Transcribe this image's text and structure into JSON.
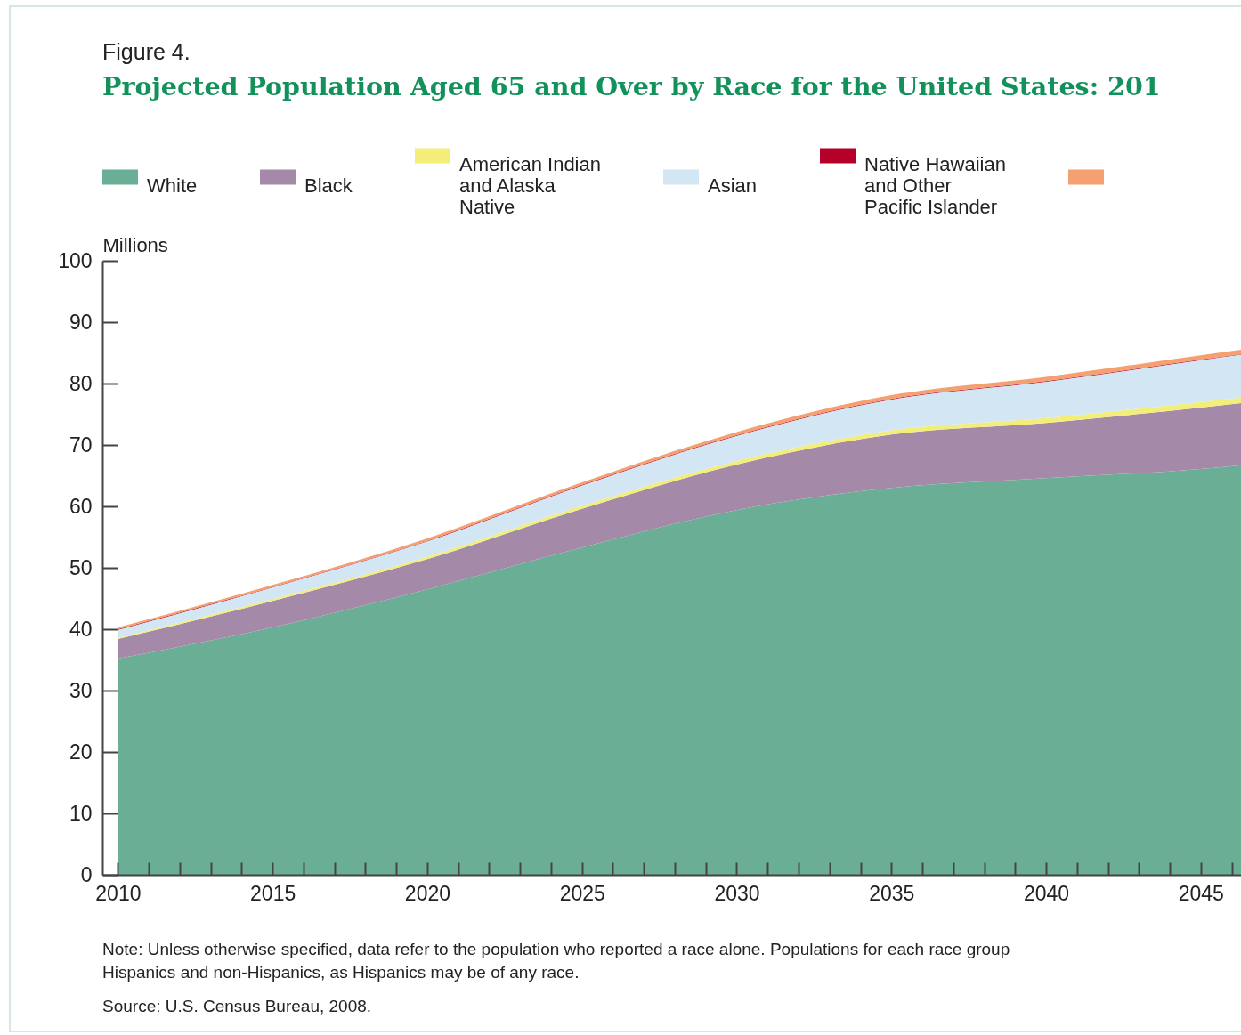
{
  "chart_data": {
    "type": "area",
    "stacked": true,
    "subtitle": "Figure 4.",
    "title": "Projected Population Aged 65 and Over by Race for the United States: 201",
    "ylabel": "Millions",
    "x": [
      2010,
      2015,
      2020,
      2025,
      2030,
      2035,
      2040,
      2045,
      2046.3
    ],
    "series": [
      {
        "name": "White",
        "color": "#6aaf95",
        "values": [
          35.2,
          40.3,
          46.5,
          53.3,
          59.4,
          63.0,
          64.6,
          66.1,
          66.7
        ]
      },
      {
        "name": "Black",
        "color": "#a48aa8",
        "values": [
          3.2,
          4.3,
          4.9,
          6.3,
          7.4,
          8.7,
          9.0,
          10.0,
          10.1
        ]
      },
      {
        "name": "American Indian and Alaska Native",
        "color": "#f3ee7a",
        "values": [
          0.2,
          0.3,
          0.4,
          0.5,
          0.6,
          0.7,
          0.8,
          0.9,
          0.9
        ]
      },
      {
        "name": "Asian",
        "color": "#d3e6f4",
        "values": [
          1.3,
          1.9,
          2.5,
          3.3,
          4.1,
          5.0,
          5.9,
          6.8,
          7.0
        ]
      },
      {
        "name": "Native Hawaiian and Other Pacific Islander",
        "color": "#b5002a",
        "values": [
          0.1,
          0.1,
          0.1,
          0.1,
          0.1,
          0.1,
          0.1,
          0.1,
          0.1
        ]
      },
      {
        "color": "#f5a070",
        "values": [
          0.3,
          0.3,
          0.4,
          0.4,
          0.5,
          0.6,
          0.7,
          0.7,
          0.7
        ]
      }
    ],
    "xlim": [
      2009.5,
      2046.3
    ],
    "xticks": [
      2010,
      {
        "value": 2011,
        "label": null
      },
      {
        "value": 2012,
        "label": null
      },
      {
        "value": 2013,
        "label": null
      },
      {
        "value": 2014,
        "label": null
      },
      2015,
      {
        "value": 2016,
        "label": null
      },
      {
        "value": 2017,
        "label": null
      },
      {
        "value": 2018,
        "label": null
      },
      {
        "value": 2019,
        "label": null
      },
      2020,
      {
        "value": 2021,
        "label": null
      },
      {
        "value": 2022,
        "label": null
      },
      {
        "value": 2023,
        "label": null
      },
      {
        "value": 2024,
        "label": null
      },
      2025,
      {
        "value": 2026,
        "label": null
      },
      {
        "value": 2027,
        "label": null
      },
      {
        "value": 2028,
        "label": null
      },
      {
        "value": 2029,
        "label": null
      },
      2030,
      {
        "value": 2031,
        "label": null
      },
      {
        "value": 2032,
        "label": null
      },
      {
        "value": 2033,
        "label": null
      },
      {
        "value": 2034,
        "label": null
      },
      2035,
      {
        "value": 2036,
        "label": null
      },
      {
        "value": 2037,
        "label": null
      },
      {
        "value": 2038,
        "label": null
      },
      {
        "value": 2039,
        "label": null
      },
      2040,
      {
        "value": 2041,
        "label": null
      },
      {
        "value": 2042,
        "label": null
      },
      {
        "value": 2043,
        "label": null
      },
      {
        "value": 2044,
        "label": null
      },
      2045,
      {
        "value": 2046,
        "label": null
      }
    ],
    "ylim": [
      0,
      100
    ],
    "yticks": [
      0,
      10,
      20,
      30,
      40,
      50,
      60,
      70,
      80,
      90,
      100
    ],
    "grid": false,
    "legend": "top",
    "annotations": [
      "Note: Unless otherwise specified, data refer to the population who reported a race alone.  Populations for each race group",
      "Hispanics and non-Hispanics, as Hispanics may be of any race.",
      "Source: U.S. Census Bureau, 2008."
    ]
  }
}
